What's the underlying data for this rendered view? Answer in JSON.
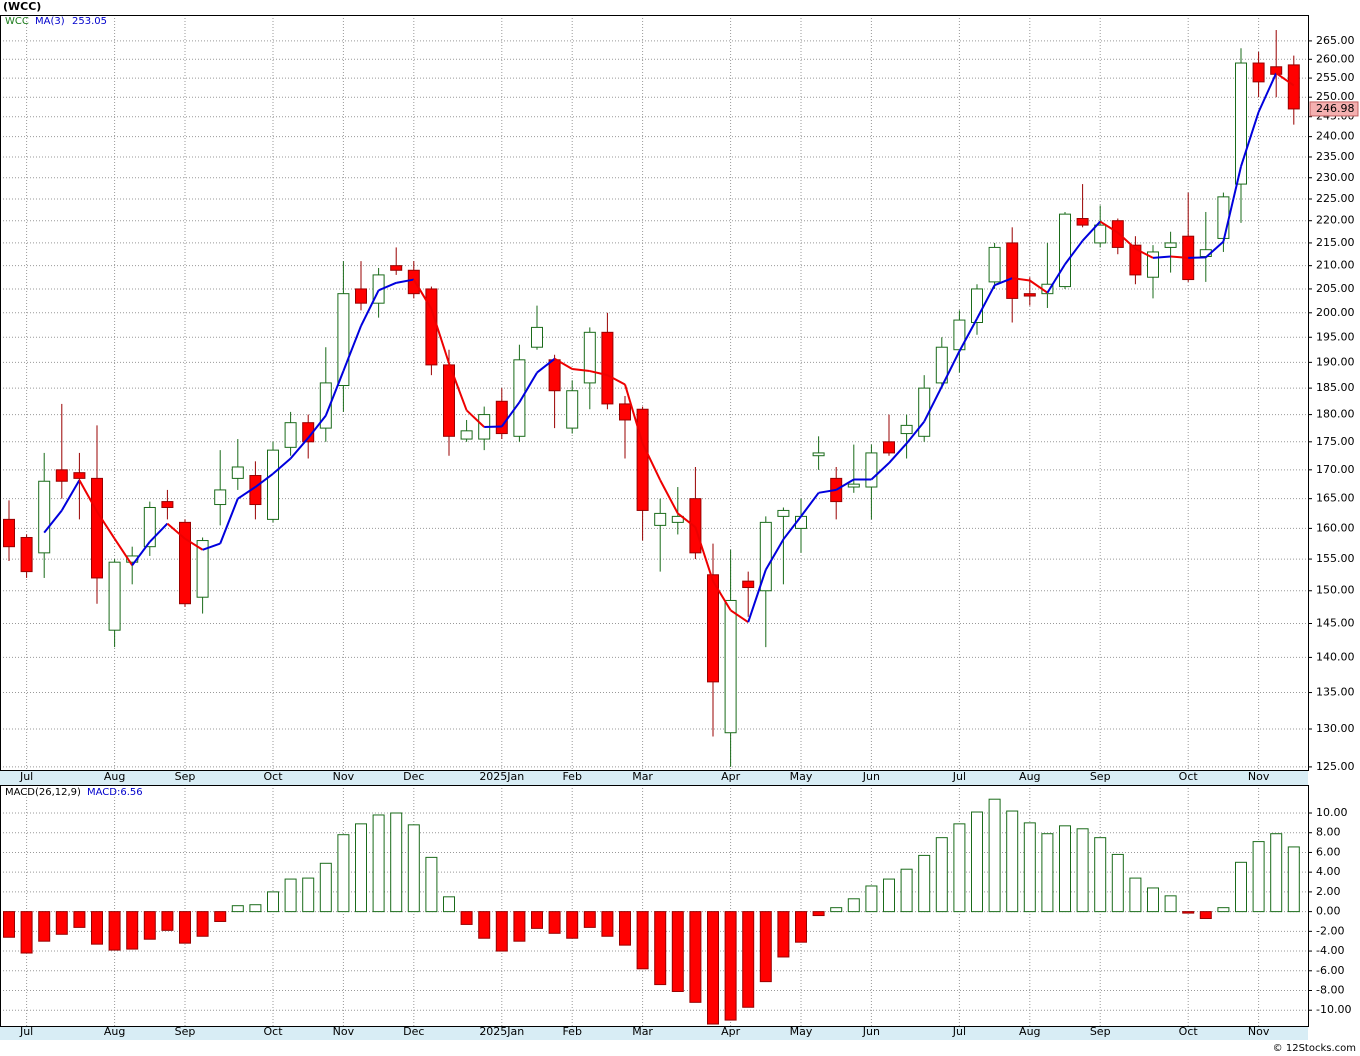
{
  "chart_data": [
    {
      "type": "candlestick",
      "title": "(WCC)",
      "symbol": "WCC",
      "log_scale": true,
      "grid": true,
      "x_labels": [
        null,
        "Jul",
        null,
        null,
        null,
        null,
        "Aug",
        null,
        null,
        null,
        "Sep",
        null,
        null,
        null,
        null,
        "Oct",
        null,
        null,
        null,
        "Nov",
        null,
        null,
        null,
        "Dec",
        null,
        null,
        null,
        null,
        "2025Jan",
        null,
        null,
        null,
        "Feb",
        null,
        null,
        null,
        "Mar",
        null,
        null,
        null,
        null,
        "Apr",
        null,
        null,
        null,
        "May",
        null,
        null,
        null,
        "Jun",
        null,
        null,
        null,
        null,
        "Jul",
        null,
        null,
        null,
        "Aug",
        null,
        null,
        null,
        "Sep",
        null,
        null,
        null,
        null,
        "Oct",
        null,
        null,
        null,
        "Nov",
        null,
        null
      ],
      "open": [
        161.5,
        158.5,
        156,
        170,
        169.5,
        168.5,
        144,
        154.5,
        157,
        164.5,
        161,
        149,
        164,
        168.5,
        169,
        161.5,
        174,
        178.5,
        177.5,
        185.5,
        205,
        202,
        210,
        209,
        205,
        189.5,
        175.5,
        175.5,
        182.5,
        176,
        193,
        190.5,
        177.5,
        186,
        196,
        182,
        181,
        160.5,
        161,
        165,
        152.5,
        129.5,
        151.5,
        150,
        162,
        160,
        172.5,
        168.5,
        167,
        167,
        175,
        176.5,
        176,
        186,
        192.5,
        198,
        206.5,
        215,
        204,
        204,
        205.5,
        220.5,
        215,
        220,
        214.5,
        207.5,
        214,
        216.5,
        212,
        216,
        228.5,
        259,
        258,
        258.5
      ],
      "high": [
        164.7,
        159,
        173,
        182,
        173,
        178,
        155,
        157,
        164.5,
        166.5,
        161.5,
        158.5,
        173.5,
        175.5,
        171.5,
        175,
        180.5,
        180,
        193,
        211,
        211,
        209.5,
        214,
        211,
        205.5,
        192.5,
        179,
        181.5,
        185,
        193.5,
        201.5,
        191.5,
        186.5,
        197,
        200,
        183.5,
        181.5,
        165,
        167,
        170.5,
        157.5,
        156.5,
        153,
        162,
        163.5,
        165,
        176,
        170.5,
        174.5,
        174.5,
        180,
        180,
        187.5,
        195,
        200.5,
        206,
        215,
        218.5,
        207.5,
        215,
        222,
        228.5,
        223.5,
        220.5,
        216.5,
        214.5,
        217.5,
        226.5,
        222,
        226.5,
        263,
        262,
        268,
        261
      ],
      "low": [
        154.7,
        152,
        152,
        165,
        161.5,
        148,
        141.5,
        151,
        155.5,
        161.5,
        147.5,
        146.5,
        160.5,
        166.5,
        161.5,
        161,
        172.5,
        172,
        175,
        180.5,
        200.5,
        199,
        208,
        203,
        187.5,
        172.5,
        175,
        173.5,
        175.5,
        175,
        192.5,
        177.5,
        176.5,
        181,
        181,
        172,
        158,
        153,
        159,
        155,
        129,
        125,
        146,
        141.5,
        151,
        156,
        170,
        161.5,
        166,
        161.5,
        172.5,
        172,
        175,
        185,
        188,
        195.5,
        205,
        198,
        201.5,
        201,
        205,
        218.5,
        214,
        212.5,
        206,
        203,
        208.5,
        206.5,
        206.5,
        213,
        219.5,
        250,
        250,
        243
      ],
      "close": [
        157,
        153,
        168,
        168,
        168.5,
        152,
        154.5,
        155.5,
        163.5,
        163.5,
        148,
        158,
        166.5,
        170.5,
        164,
        173.5,
        178.5,
        175,
        186,
        204,
        202,
        208,
        209,
        204,
        189.5,
        176,
        177,
        180,
        176.5,
        190.5,
        197,
        184.5,
        184.5,
        196,
        182,
        179,
        163,
        162.5,
        162,
        156,
        136.5,
        148.5,
        150.5,
        161,
        163,
        162,
        173,
        164.5,
        167.5,
        173,
        173,
        178,
        185,
        193,
        198.5,
        205,
        214,
        203,
        203.5,
        206,
        221.5,
        219,
        219,
        214,
        208,
        213,
        215,
        207,
        213.5,
        225.5,
        259,
        254,
        256,
        246.98
      ],
      "ma": {
        "name": "MA(3)",
        "up_color": "#0000dd",
        "down_color": "#ee0000",
        "values": [
          null,
          null,
          159.3,
          163,
          168.2,
          162.8,
          158.3,
          154,
          157.8,
          160.8,
          158.3,
          156.5,
          157.5,
          165,
          167,
          169.3,
          172,
          175.7,
          179.8,
          188.3,
          197.3,
          204.7,
          206.3,
          207,
          200.8,
          189.8,
          180.8,
          177.7,
          177.8,
          182.3,
          188,
          190.7,
          188.7,
          188.3,
          187.5,
          185.7,
          174.7,
          168.2,
          162.5,
          160.2,
          151.5,
          147,
          145.2,
          153.3,
          158.2,
          162,
          166,
          166.5,
          168.3,
          168.3,
          171.2,
          174.7,
          178.7,
          185.3,
          192.2,
          198.8,
          205.8,
          207.3,
          206.8,
          204.2,
          210.3,
          215.5,
          219.8,
          217.3,
          213.7,
          211.7,
          212,
          211.7,
          211.8,
          215.3,
          232.7,
          246.2,
          256.3,
          253.05
        ]
      },
      "up_color": "#ffffff",
      "up_edge": "#1a6b1a",
      "down_color": "#ff0000",
      "down_edge": "#990000",
      "ylim": [
        124.6,
        272.2
      ],
      "yticks": [
        {
          "value": 125,
          "label": "125.00"
        },
        {
          "value": 130,
          "label": "130.00"
        },
        {
          "value": 135,
          "label": "135.00"
        },
        {
          "value": 140,
          "label": "140.00"
        },
        {
          "value": 145,
          "label": "145.00"
        },
        {
          "value": 150,
          "label": "150.00"
        },
        {
          "value": 155,
          "label": "155.00"
        },
        {
          "value": 160,
          "label": "160.00"
        },
        {
          "value": 165,
          "label": "165.00"
        },
        {
          "value": 170,
          "label": "170.00"
        },
        {
          "value": 175,
          "label": "175.00"
        },
        {
          "value": 180,
          "label": "180.00"
        },
        {
          "value": 185,
          "label": "185.00"
        },
        {
          "value": 190,
          "label": "190.00"
        },
        {
          "value": 195,
          "label": "195.00"
        },
        {
          "value": 200,
          "label": "200.00"
        },
        {
          "value": 205,
          "label": "205.00"
        },
        {
          "value": 210,
          "label": "210.00"
        },
        {
          "value": 215,
          "label": "215.00"
        },
        {
          "value": 220,
          "label": "220.00"
        },
        {
          "value": 225,
          "label": "225.00"
        },
        {
          "value": 230,
          "label": "230.00"
        },
        {
          "value": 235,
          "label": "235.00"
        },
        {
          "value": 240,
          "label": "240.00"
        },
        {
          "value": 245,
          "label": "245.00"
        },
        {
          "value": 250,
          "label": "250.00"
        },
        {
          "value": 255,
          "label": "255.00"
        },
        {
          "value": 260,
          "label": "260.00"
        },
        {
          "value": 265,
          "label": "265.00"
        }
      ]
    },
    {
      "type": "bar",
      "label": "MACD(26,12,9)",
      "legend": "MACD:6.56",
      "grid": true,
      "values": [
        -2.6,
        -4.2,
        -3.0,
        -2.3,
        -1.6,
        -3.3,
        -3.9,
        -3.8,
        -2.8,
        -1.9,
        -3.2,
        -2.5,
        -1.0,
        0.6,
        0.7,
        2.0,
        3.3,
        3.4,
        4.9,
        7.8,
        8.9,
        9.8,
        10.0,
        8.8,
        5.5,
        1.5,
        -1.3,
        -2.7,
        -4.0,
        -3.0,
        -1.7,
        -2.2,
        -2.7,
        -1.6,
        -2.5,
        -3.4,
        -5.8,
        -7.4,
        -8.1,
        -9.2,
        -11.4,
        -11.0,
        -9.7,
        -7.1,
        -4.6,
        -3.1,
        -0.4,
        0.4,
        1.3,
        2.6,
        3.3,
        4.3,
        5.7,
        7.5,
        8.9,
        10.1,
        11.4,
        10.2,
        9.0,
        7.9,
        8.7,
        8.4,
        7.5,
        5.8,
        3.4,
        2.4,
        1.6,
        -0.15,
        -0.7,
        0.4,
        5.0,
        7.1,
        7.9,
        6.56
      ],
      "up_color": "#ffffff",
      "up_edge": "#1a6b1a",
      "down_color": "#ff0000",
      "down_edge": "#990000",
      "ylim": [
        -11.6,
        12.84
      ],
      "yticks": [
        {
          "value": -10,
          "label": "-10.00"
        },
        {
          "value": -8,
          "label": "-8.00"
        },
        {
          "value": -6,
          "label": "-6.00"
        },
        {
          "value": -4,
          "label": "-4.00"
        },
        {
          "value": -2,
          "label": "-2.00"
        },
        {
          "value": 0,
          "label": "0.00"
        },
        {
          "value": 2,
          "label": "2.00"
        },
        {
          "value": 4,
          "label": "4.00"
        },
        {
          "value": 6,
          "label": "6.00"
        },
        {
          "value": 8,
          "label": "8.00"
        },
        {
          "value": 10,
          "label": "10.00"
        }
      ]
    }
  ],
  "footer": "© 12Stocks.com"
}
